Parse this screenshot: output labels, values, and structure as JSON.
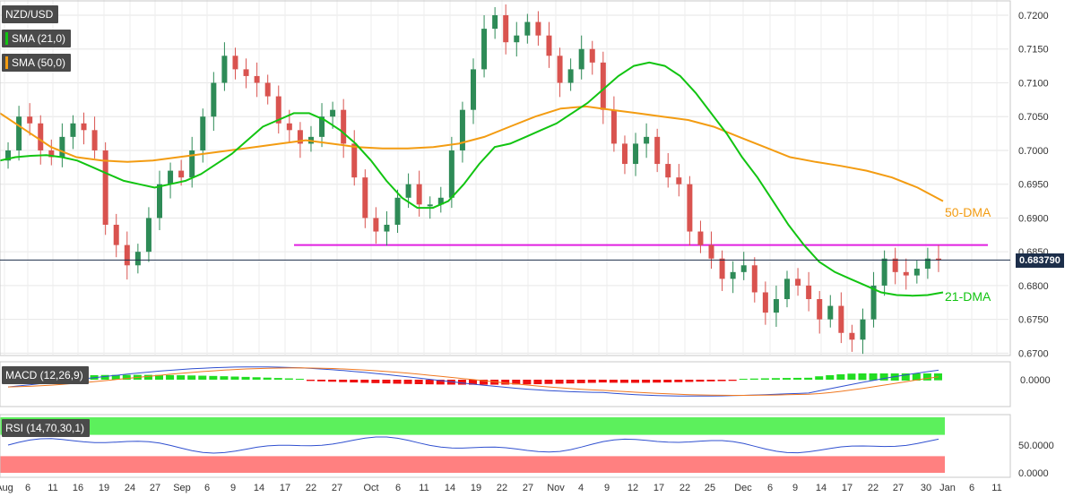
{
  "legend": {
    "symbol": "NZD/USD",
    "sma21": "SMA (21,0)",
    "sma50": "SMA (50,0)",
    "macd": "MACD (12,26,9)",
    "rsi": "RSI (14,70,30,1)"
  },
  "colors": {
    "up": "#2e8b57",
    "down": "#d9534f",
    "sma21": "#12c412",
    "sma50": "#f39c12",
    "support": "#e020e0",
    "macd_line": "#3050d0",
    "signal_line": "#f07820",
    "hist_pos": "#22dd22",
    "hist_neg": "#ee1111",
    "rsi_line": "#3050d0",
    "rsi_over": "#5cf05c",
    "rsi_under": "#ff8080"
  },
  "current_price": "0.683790",
  "annotations": {
    "dma50": "50-DMA",
    "dma21": "21-DMA"
  },
  "chart_data": {
    "type": "candlestick",
    "price_axis": {
      "ticks": [
        "0.7200",
        "0.7150",
        "0.7100",
        "0.7050",
        "0.7000",
        "0.6950",
        "0.6900",
        "0.6850",
        "0.6800",
        "0.6750",
        "0.6700"
      ],
      "values": [
        0.72,
        0.715,
        0.71,
        0.705,
        0.7,
        0.695,
        0.69,
        0.685,
        0.68,
        0.675,
        0.67
      ]
    },
    "x_axis": {
      "labels": [
        "Aug",
        "6",
        "11",
        "16",
        "19",
        "24",
        "27",
        "Sep",
        "6",
        "9",
        "14",
        "17",
        "22",
        "27",
        "Oct",
        "6",
        "11",
        "14",
        "19",
        "22",
        "27",
        "Nov",
        "4",
        "9",
        "12",
        "17",
        "22",
        "25",
        "Dec",
        "6",
        "9",
        "14",
        "17",
        "22",
        "27",
        "30",
        "Jan",
        "6",
        "11"
      ]
    },
    "support_level": 0.686,
    "closes": [
      0.7,
      0.705,
      0.704,
      0.7,
      0.699,
      0.702,
      0.704,
      0.703,
      0.7,
      0.689,
      0.686,
      0.683,
      0.685,
      0.69,
      0.695,
      0.697,
      0.696,
      0.7,
      0.705,
      0.71,
      0.714,
      0.712,
      0.711,
      0.71,
      0.708,
      0.704,
      0.703,
      0.701,
      0.702,
      0.705,
      0.706,
      0.701,
      0.696,
      0.69,
      0.688,
      0.689,
      0.693,
      0.695,
      0.692,
      0.692,
      0.693,
      0.7,
      0.706,
      0.712,
      0.718,
      0.72,
      0.716,
      0.717,
      0.719,
      0.717,
      0.714,
      0.71,
      0.712,
      0.715,
      0.713,
      0.706,
      0.701,
      0.698,
      0.701,
      0.702,
      0.698,
      0.696,
      0.695,
      0.688,
      0.686,
      0.684,
      0.681,
      0.682,
      0.683,
      0.679,
      0.676,
      0.678,
      0.681,
      0.68,
      0.678,
      0.675,
      0.677,
      0.673,
      0.672,
      0.675,
      0.68,
      0.684,
      0.682,
      0.6815,
      0.6825,
      0.684,
      0.6838
    ],
    "sma21": [
      0.6985,
      0.699,
      0.6992,
      0.6993,
      0.699,
      0.6985,
      0.6975,
      0.6965,
      0.6955,
      0.695,
      0.6945,
      0.695,
      0.6955,
      0.6965,
      0.698,
      0.6995,
      0.7015,
      0.7035,
      0.7045,
      0.7055,
      0.7055,
      0.7045,
      0.703,
      0.701,
      0.6985,
      0.6955,
      0.693,
      0.6915,
      0.6915,
      0.6925,
      0.695,
      0.698,
      0.7005,
      0.701,
      0.702,
      0.703,
      0.704,
      0.7055,
      0.707,
      0.709,
      0.711,
      0.7125,
      0.713,
      0.7125,
      0.711,
      0.7085,
      0.7055,
      0.7025,
      0.699,
      0.696,
      0.6925,
      0.689,
      0.686,
      0.6835,
      0.682,
      0.681,
      0.68,
      0.679,
      0.6786,
      0.6785,
      0.6786,
      0.679
    ],
    "sma50": [
      0.7055,
      0.703,
      0.7005,
      0.699,
      0.6985,
      0.6983,
      0.6985,
      0.699,
      0.6995,
      0.7,
      0.7005,
      0.701,
      0.7015,
      0.701,
      0.7005,
      0.7003,
      0.7003,
      0.7005,
      0.701,
      0.702,
      0.7035,
      0.705,
      0.7062,
      0.7065,
      0.706,
      0.7055,
      0.705,
      0.7045,
      0.7035,
      0.702,
      0.7005,
      0.699,
      0.6983,
      0.6977,
      0.697,
      0.696,
      0.6945,
      0.6925
    ],
    "macd": {
      "y_tick": "0.0000"
    },
    "rsi": {
      "y_ticks": [
        "50.0000",
        "0.0000"
      ],
      "levels": [
        70,
        30
      ]
    }
  }
}
